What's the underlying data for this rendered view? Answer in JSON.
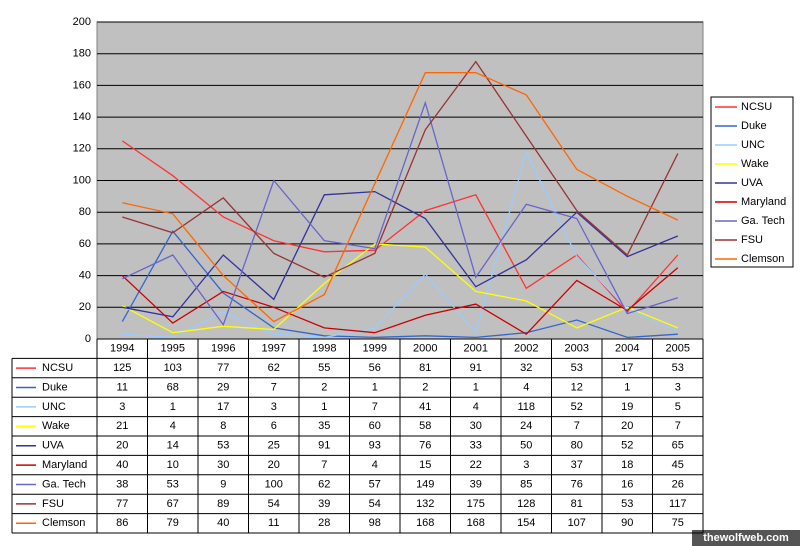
{
  "chart_data": {
    "type": "line",
    "categories": [
      "1994",
      "1995",
      "1996",
      "1997",
      "1998",
      "1999",
      "2000",
      "2001",
      "2002",
      "2003",
      "2004",
      "2005"
    ],
    "ylim": [
      0,
      200
    ],
    "yticks": [
      0,
      20,
      40,
      60,
      80,
      100,
      120,
      140,
      160,
      180,
      200
    ],
    "grid": true,
    "legend": "right",
    "series": [
      {
        "name": "NCSU",
        "color": "#ff3333",
        "values": [
          125,
          103,
          77,
          62,
          55,
          56,
          81,
          91,
          32,
          53,
          17,
          53
        ]
      },
      {
        "name": "Duke",
        "color": "#3366cc",
        "values": [
          11,
          68,
          29,
          7,
          2,
          1,
          2,
          1,
          4,
          12,
          1,
          3
        ]
      },
      {
        "name": "UNC",
        "color": "#99ccff",
        "values": [
          3,
          1,
          17,
          3,
          1,
          7,
          41,
          4,
          118,
          52,
          19,
          5
        ]
      },
      {
        "name": "Wake",
        "color": "#ffff00",
        "values": [
          21,
          4,
          8,
          6,
          35,
          60,
          58,
          30,
          24,
          7,
          20,
          7
        ]
      },
      {
        "name": "UVA",
        "color": "#333399",
        "values": [
          20,
          14,
          53,
          25,
          91,
          93,
          76,
          33,
          50,
          80,
          52,
          65
        ]
      },
      {
        "name": "Maryland",
        "color": "#cc0000",
        "values": [
          40,
          10,
          30,
          20,
          7,
          4,
          15,
          22,
          3,
          37,
          18,
          45
        ]
      },
      {
        "name": "Ga. Tech",
        "color": "#6666cc",
        "values": [
          38,
          53,
          9,
          100,
          62,
          57,
          149,
          39,
          85,
          76,
          16,
          26
        ]
      },
      {
        "name": "FSU",
        "color": "#993333",
        "values": [
          77,
          67,
          89,
          54,
          39,
          54,
          132,
          175,
          128,
          81,
          53,
          117
        ]
      },
      {
        "name": "Clemson",
        "color": "#ff6600",
        "values": [
          86,
          79,
          40,
          11,
          28,
          98,
          168,
          168,
          154,
          107,
          90,
          75
        ]
      }
    ],
    "watermark": "thewolfweb.com"
  }
}
